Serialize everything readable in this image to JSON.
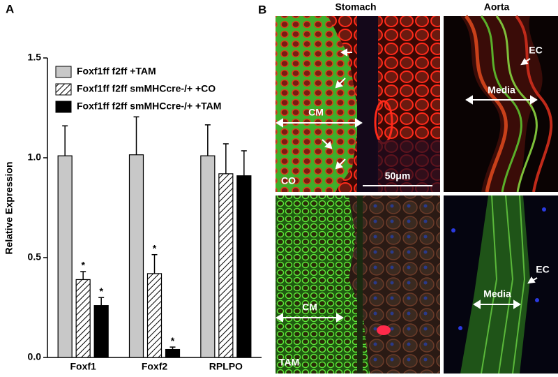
{
  "panel_a_label": "A",
  "chart_data": {
    "type": "bar",
    "y_label": "Relative Expression",
    "categories": [
      "Foxf1",
      "Foxf2",
      "RPLPO"
    ],
    "series": [
      {
        "name": "Foxf1ff f2ff +TAM",
        "color": "#c8c8c8",
        "hatch": false,
        "values": [
          1.01,
          1.015,
          1.01
        ],
        "errors": [
          0.15,
          0.19,
          0.155
        ],
        "significance": [
          null,
          null,
          null
        ]
      },
      {
        "name": "Foxf1ff f2ff smMHCcre-/+ +CO",
        "color": "#ffffff",
        "hatch": true,
        "values": [
          0.39,
          0.42,
          0.92
        ],
        "errors": [
          0.04,
          0.095,
          0.15
        ],
        "significance": [
          "*",
          "*",
          null
        ]
      },
      {
        "name": "Foxf1ff f2ff smMHCcre-/+ +TAM",
        "color": "#000000",
        "hatch": false,
        "values": [
          0.26,
          0.04,
          0.91
        ],
        "errors": [
          0.04,
          0.012,
          0.125
        ],
        "significance": [
          "*",
          "*",
          null
        ]
      }
    ],
    "ylim": [
      0,
      1.5
    ],
    "yticks": [
      {
        "value": 0,
        "label": "0.0"
      },
      0.5,
      {
        "value": 1,
        "label": "1.0"
      },
      1.5
    ],
    "grid": false
  },
  "panel_b": {
    "label": "B",
    "columns": [
      "Stomach",
      "Aorta"
    ],
    "rows": [
      "CO",
      "TAM"
    ],
    "annotations": {
      "cm": "CM",
      "media": "Media",
      "ec": "EC",
      "scale": "50μm"
    }
  }
}
